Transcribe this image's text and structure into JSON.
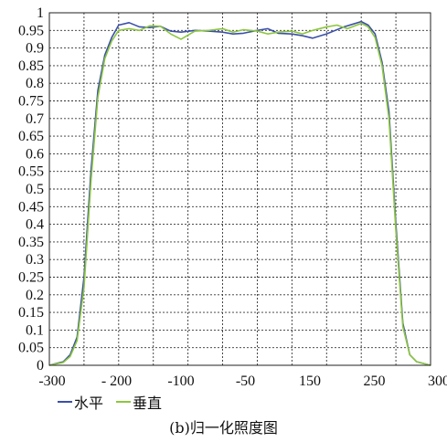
{
  "chart_data": {
    "type": "line",
    "x_tick_labels": [
      "-300",
      "- 200",
      "-100",
      "-50",
      "150",
      "250",
      "300"
    ],
    "y_ticks": [
      0,
      0.05,
      0.1,
      0.15,
      0.2,
      0.25,
      0.3,
      0.35,
      0.4,
      0.45,
      0.5,
      0.55,
      0.6,
      0.65,
      0.7,
      0.75,
      0.8,
      0.85,
      0.9,
      0.95,
      1
    ],
    "y_tick_labels": [
      "0",
      "0.05",
      "0.1",
      "0.15",
      "0.2",
      "0.25",
      "0.3",
      "0.35",
      "0.4",
      "0.45",
      "0.5",
      "0.55",
      "0.6",
      "0.65",
      "0.7",
      "0.75",
      "0.8",
      "0.85",
      "0.9",
      "0.95",
      "1"
    ],
    "ylim": [
      0,
      1
    ],
    "grid": true,
    "legend_position": "bottom-left",
    "series": [
      {
        "name": "水平",
        "color": "#3b4fa8",
        "points": [
          [
            0,
            0
          ],
          [
            0.2,
            0.005
          ],
          [
            0.4,
            0.01
          ],
          [
            0.6,
            0.03
          ],
          [
            0.8,
            0.08
          ],
          [
            1,
            0.25
          ],
          [
            1.2,
            0.55
          ],
          [
            1.4,
            0.78
          ],
          [
            1.6,
            0.88
          ],
          [
            1.8,
            0.93
          ],
          [
            2,
            0.965
          ],
          [
            2.3,
            0.972
          ],
          [
            2.6,
            0.96
          ],
          [
            2.9,
            0.958
          ],
          [
            3.2,
            0.962
          ],
          [
            3.5,
            0.948
          ],
          [
            3.8,
            0.945
          ],
          [
            4.2,
            0.95
          ],
          [
            4.6,
            0.948
          ],
          [
            5,
            0.945
          ],
          [
            5.3,
            0.94
          ],
          [
            5.6,
            0.942
          ],
          [
            6,
            0.95
          ],
          [
            6.3,
            0.955
          ],
          [
            6.6,
            0.942
          ],
          [
            7,
            0.94
          ],
          [
            7.3,
            0.935
          ],
          [
            7.6,
            0.928
          ],
          [
            8,
            0.94
          ],
          [
            8.5,
            0.96
          ],
          [
            9,
            0.975
          ],
          [
            9.2,
            0.965
          ],
          [
            9.4,
            0.94
          ],
          [
            9.6,
            0.86
          ],
          [
            9.8,
            0.72
          ],
          [
            10,
            0.4
          ],
          [
            10.2,
            0.12
          ],
          [
            10.4,
            0.03
          ],
          [
            10.6,
            0.01
          ],
          [
            11,
            0
          ]
        ]
      },
      {
        "name": "垂直",
        "color": "#8dc63f",
        "points": [
          [
            0,
            0
          ],
          [
            0.2,
            0.004
          ],
          [
            0.4,
            0.008
          ],
          [
            0.6,
            0.025
          ],
          [
            0.8,
            0.07
          ],
          [
            1,
            0.22
          ],
          [
            1.2,
            0.52
          ],
          [
            1.4,
            0.76
          ],
          [
            1.6,
            0.87
          ],
          [
            1.8,
            0.92
          ],
          [
            2,
            0.95
          ],
          [
            2.3,
            0.955
          ],
          [
            2.6,
            0.95
          ],
          [
            2.9,
            0.963
          ],
          [
            3.2,
            0.962
          ],
          [
            3.5,
            0.94
          ],
          [
            3.8,
            0.925
          ],
          [
            4.2,
            0.948
          ],
          [
            4.6,
            0.95
          ],
          [
            5,
            0.955
          ],
          [
            5.3,
            0.945
          ],
          [
            5.6,
            0.952
          ],
          [
            6,
            0.948
          ],
          [
            6.3,
            0.94
          ],
          [
            6.6,
            0.945
          ],
          [
            7,
            0.948
          ],
          [
            7.3,
            0.94
          ],
          [
            7.6,
            0.95
          ],
          [
            8,
            0.96
          ],
          [
            8.3,
            0.965
          ],
          [
            8.6,
            0.955
          ],
          [
            9,
            0.97
          ],
          [
            9.2,
            0.96
          ],
          [
            9.4,
            0.93
          ],
          [
            9.6,
            0.85
          ],
          [
            9.8,
            0.7
          ],
          [
            10,
            0.38
          ],
          [
            10.2,
            0.11
          ],
          [
            10.4,
            0.03
          ],
          [
            10.6,
            0.01
          ],
          [
            11,
            0
          ]
        ]
      }
    ]
  },
  "legend": [
    {
      "label": "水平",
      "color": "#3b4fa8"
    },
    {
      "label": "垂直",
      "color": "#8dc63f"
    }
  ],
  "caption": "(b)归一化照度图"
}
